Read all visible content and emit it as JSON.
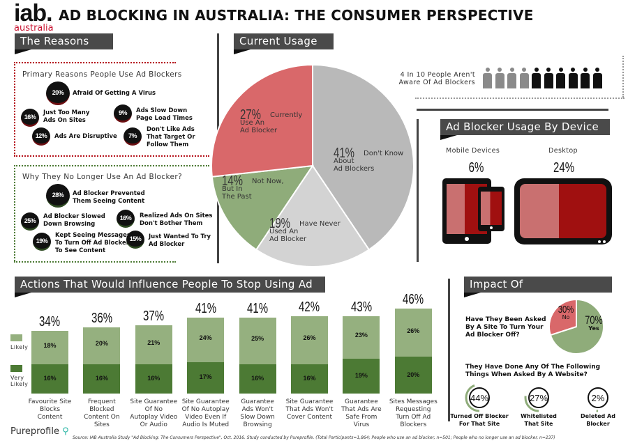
{
  "header": {
    "logo_main": "iab.",
    "logo_sub": "australia",
    "title": "AD BLOCKING IN AUSTRALIA: THE CONSUMER PERSPECTIVE"
  },
  "reasons": {
    "section_title": "The Reasons",
    "primary": {
      "title": "Primary Reasons People Use Ad Blockers",
      "items": [
        {
          "pct": "20%",
          "label": "Afraid Of Getting A Virus"
        },
        {
          "pct": "16%",
          "label": "Just Too Many\nAds On Sites"
        },
        {
          "pct": "12%",
          "label": "Ads Are Disruptive"
        },
        {
          "pct": "9%",
          "label": "Ads Slow Down\nPage Load Times"
        },
        {
          "pct": "7%",
          "label": "Don't Like Ads\nThat Target Or\nFollow Them"
        }
      ]
    },
    "no_longer": {
      "title": "Why They No Longer Use An Ad Blocker?",
      "items": [
        {
          "pct": "28%",
          "label": "Ad Blocker Prevented\nThem Seeing Content"
        },
        {
          "pct": "25%",
          "label": "Ad Blocker Slowed\nDown Browsing"
        },
        {
          "pct": "19%",
          "label": "Kept Seeing Messages\nTo Turn Off Ad Blocker\nTo See Content"
        },
        {
          "pct": "16%",
          "label": "Realized Ads On Sites\nDon't Bother Them"
        },
        {
          "pct": "15%",
          "label": "Just Wanted To Try\nAd Blocker"
        }
      ]
    }
  },
  "current_usage": {
    "section_title": "Current Usage",
    "awareness": {
      "label": "4 In 10 People Aren't\nAware Of Ad Blockers",
      "unaware": 4,
      "total": 10
    }
  },
  "device": {
    "section_title": "Ad Blocker Usage By Device",
    "mobile_label": "Mobile Devices",
    "mobile_pct": "6%",
    "desktop_label": "Desktop",
    "desktop_pct": "24%"
  },
  "actions": {
    "section_title": "Actions That Would Influence People To Stop Using Ad Blockers",
    "legend_likely": "Likely",
    "legend_very_likely": "Very\nLikely"
  },
  "impact": {
    "section_title": "Impact Of Communication",
    "question1": "Have They Been Asked\nBy A Site To Turn Your\nAd Blocker Off?",
    "question2": "They Have Done Any Of The Following\nThings When Asked By A Website?",
    "rings": [
      {
        "pct": "44%",
        "value": 44,
        "label": "Turned Off Blocker\nFor That Site"
      },
      {
        "pct": "27%",
        "value": 27,
        "label": "Whitelisted\nThat Site"
      },
      {
        "pct": "2%",
        "value": 2,
        "label": "Deleted Ad\nBlocker"
      }
    ]
  },
  "footer": {
    "brand": "Pureprofile",
    "source": "Source: IAB Australia Study \"Ad Blocking: The Consumers Perspective\", Oct. 2016. Study conducted by Pureprofile. (Total Participants=1,864; People who use an ad blocker, n=501; People who no longer use an ad blocker, n=237)"
  },
  "colors": {
    "red": "#d9686a",
    "gray": "#b9b9b9",
    "lightgray": "#d3d3d3",
    "green": "#8fac7a",
    "darkgreen": "#4c7a34",
    "lightgreen": "#95b07f"
  },
  "chart_data": [
    {
      "type": "pie",
      "title": "Current Usage",
      "slices": [
        {
          "label": "Don't Know\nAbout\nAd Blockers",
          "pct": "41%",
          "value": 41,
          "color": "#b9b9b9"
        },
        {
          "label": "Have Never\nUsed An\nAd Blocker",
          "pct": "19%",
          "value": 19,
          "color": "#d3d3d3"
        },
        {
          "label": "Not Now,\nBut In\nThe Past",
          "pct": "14%",
          "value": 14,
          "color": "#8fac7a"
        },
        {
          "label": "Currently\nUse An\nAd Blocker",
          "pct": "27%",
          "value": 27,
          "color": "#d9686a"
        }
      ]
    },
    {
      "type": "bar",
      "stacked": true,
      "title": "Actions That Would Influence People To Stop Using Ad Blockers",
      "categories": [
        "Favourite Site\nBlocks\nContent",
        "Frequent\nBlocked\nContent On\nSites",
        "Site Guarantee\nOf No\nAutoplay Video\nOr Audio",
        "Site Guarantee\nOf No Autoplay\nVideo Even If\nAudio Is Muted",
        "Guarantee\nAds Won't\nSlow Down\nBrowsing",
        "Site Guarantee\nThat Ads Won't\nCover Content",
        "Guarantee\nThat Ads Are\nSafe From\nVirus",
        "Sites Messages\nRequesting\nTurn Off Ad\nBlockers"
      ],
      "totals": [
        "34%",
        "36%",
        "37%",
        "41%",
        "41%",
        "42%",
        "43%",
        "46%"
      ],
      "series": [
        {
          "name": "Very Likely",
          "values": [
            16,
            16,
            16,
            17,
            16,
            16,
            19,
            20
          ],
          "labels": [
            "16%",
            "16%",
            "16%",
            "17%",
            "16%",
            "16%",
            "19%",
            "20%"
          ],
          "color": "#4c7a34"
        },
        {
          "name": "Likely",
          "values": [
            18,
            20,
            21,
            24,
            25,
            26,
            23,
            26
          ],
          "labels": [
            "18%",
            "20%",
            "21%",
            "24%",
            "25%",
            "26%",
            "23%",
            "26%"
          ],
          "color": "#95b07f"
        }
      ],
      "ylim": [
        0,
        50
      ],
      "legend": "left"
    },
    {
      "type": "pie",
      "title": "Have They Been Asked By A Site To Turn Your Ad Blocker Off?",
      "slices": [
        {
          "label": "Yes",
          "pct": "70%",
          "value": 70,
          "color": "#8fac7a"
        },
        {
          "label": "No",
          "pct": "30%",
          "value": 30,
          "color": "#d9686a"
        }
      ]
    }
  ]
}
